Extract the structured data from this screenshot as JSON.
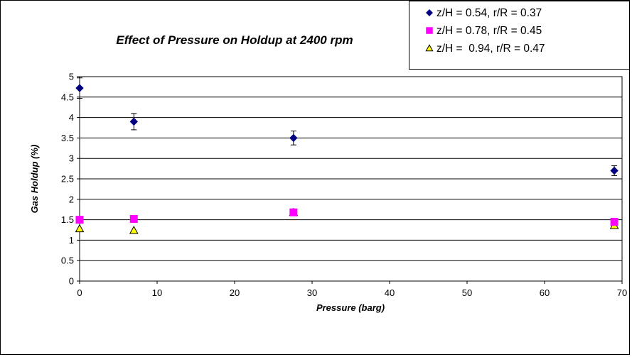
{
  "chart_data": {
    "type": "scatter",
    "title": "Effect of Pressure on Holdup at 2400 rpm",
    "xlabel": "Pressure (barg)",
    "ylabel": "Gas Holdup (%)",
    "xlim": [
      0,
      70
    ],
    "ylim": [
      0,
      5
    ],
    "x_ticks": [
      0,
      10,
      20,
      30,
      40,
      50,
      60,
      70
    ],
    "y_ticks": [
      0,
      0.5,
      1,
      1.5,
      2,
      2.5,
      3,
      3.5,
      4,
      4.5,
      5
    ],
    "grid": "horizontal",
    "legend_position": "top-right",
    "series": [
      {
        "name": "z/H = 0.54, r/R = 0.37",
        "marker": "diamond",
        "color": "#000080",
        "x": [
          0,
          7,
          27.6,
          69
        ],
        "y": [
          4.72,
          3.9,
          3.5,
          2.7
        ],
        "error": [
          0.25,
          0.2,
          0.17,
          0.12
        ]
      },
      {
        "name": "z/H = 0.78, r/R = 0.45",
        "marker": "square",
        "color": "#ff00ff",
        "x": [
          0,
          7,
          27.6,
          69
        ],
        "y": [
          1.5,
          1.52,
          1.68,
          1.45
        ]
      },
      {
        "name": "z/H =  0.94, r/R = 0.47",
        "marker": "triangle",
        "color": "#ffff00",
        "x": [
          0,
          7,
          27.6,
          69
        ],
        "y": [
          1.28,
          1.24,
          1.68,
          1.36
        ]
      }
    ]
  }
}
